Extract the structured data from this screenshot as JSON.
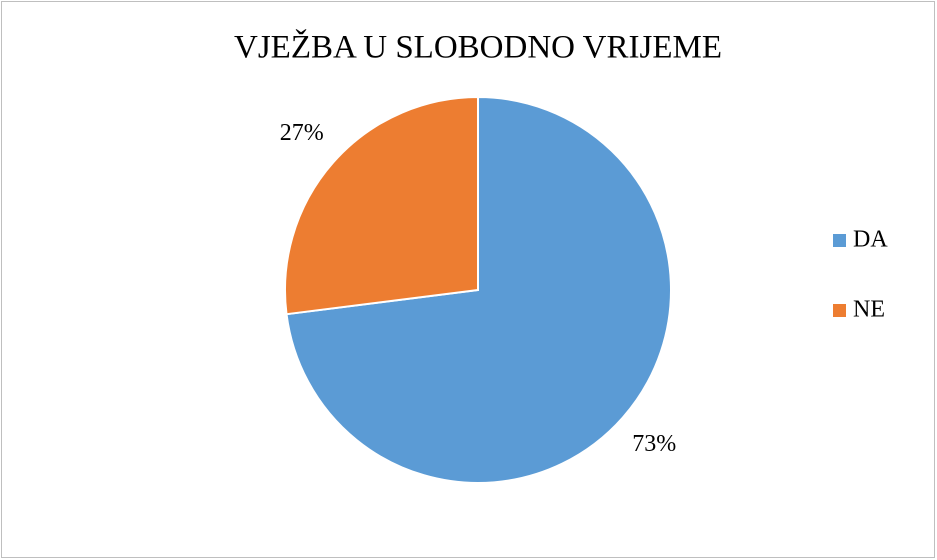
{
  "chart_data": {
    "type": "pie",
    "title": "VJEŽBA U SLOBODNO VRIJEME",
    "categories": [
      "DA",
      "NE"
    ],
    "values": [
      73,
      27
    ],
    "value_labels": [
      "73%",
      "27%"
    ],
    "colors": [
      "#5b9bd5",
      "#ed7d31"
    ],
    "legend": "right"
  }
}
